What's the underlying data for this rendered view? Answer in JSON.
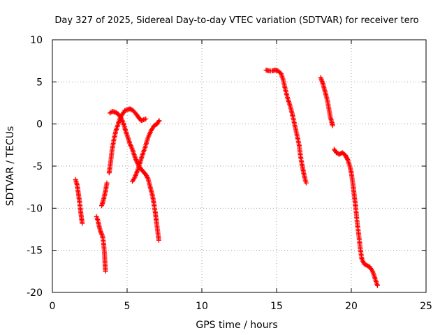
{
  "chart_data": {
    "type": "scatter",
    "title": "Day 327 of 2025, Sidereal Day-to-day VTEC variation (SDTVAR) for receiver tero",
    "xlabel": "GPS time / hours",
    "ylabel": "SDTVAR / TECUs",
    "xlim": [
      0,
      25
    ],
    "ylim": [
      -20,
      10
    ],
    "xticks": [
      0,
      5,
      10,
      15,
      20,
      25
    ],
    "yticks": [
      -20,
      -15,
      -10,
      -5,
      0,
      5,
      10
    ],
    "grid": true,
    "marker": "+",
    "color": "#ff0000",
    "series": [
      {
        "segments": [
          [
            [
              1.55,
              -6.6
            ],
            [
              1.65,
              -7.2
            ],
            [
              1.72,
              -8.0
            ],
            [
              1.8,
              -9.0
            ],
            [
              1.88,
              -10.2
            ],
            [
              1.95,
              -11.2
            ],
            [
              2.0,
              -11.8
            ]
          ],
          [
            [
              2.95,
              -11.0
            ],
            [
              3.05,
              -11.5
            ],
            [
              3.15,
              -12.3
            ],
            [
              3.25,
              -12.9
            ],
            [
              3.35,
              -13.3
            ],
            [
              3.42,
              -14.0
            ],
            [
              3.48,
              -15.2
            ],
            [
              3.52,
              -16.5
            ],
            [
              3.55,
              -17.5
            ]
          ],
          [
            [
              3.3,
              -9.7
            ],
            [
              3.42,
              -9.0
            ],
            [
              3.55,
              -8.0
            ],
            [
              3.65,
              -7.0
            ]
          ],
          [
            [
              3.8,
              -5.8
            ],
            [
              3.9,
              -4.5
            ],
            [
              4.0,
              -3.0
            ],
            [
              4.12,
              -1.8
            ],
            [
              4.25,
              -0.8
            ],
            [
              4.4,
              0.0
            ],
            [
              4.55,
              0.8
            ],
            [
              4.7,
              1.2
            ],
            [
              4.85,
              1.6
            ],
            [
              5.0,
              1.7
            ],
            [
              5.2,
              1.8
            ],
            [
              5.4,
              1.6
            ],
            [
              5.6,
              1.2
            ],
            [
              5.8,
              0.7
            ],
            [
              5.95,
              0.4
            ],
            [
              6.1,
              0.5
            ],
            [
              6.25,
              0.6
            ]
          ],
          [
            [
              3.85,
              1.3
            ],
            [
              4.0,
              1.5
            ],
            [
              4.2,
              1.4
            ],
            [
              4.4,
              1.2
            ],
            [
              4.6,
              0.7
            ],
            [
              4.75,
              0.1
            ],
            [
              4.9,
              -0.8
            ],
            [
              5.05,
              -1.6
            ],
            [
              5.2,
              -2.4
            ],
            [
              5.35,
              -3.0
            ],
            [
              5.5,
              -3.8
            ],
            [
              5.65,
              -4.5
            ],
            [
              5.8,
              -5.0
            ],
            [
              5.95,
              -5.4
            ],
            [
              6.1,
              -5.7
            ],
            [
              6.25,
              -6.0
            ],
            [
              6.4,
              -6.5
            ],
            [
              6.55,
              -7.5
            ],
            [
              6.7,
              -8.5
            ],
            [
              6.8,
              -9.5
            ],
            [
              6.9,
              -10.7
            ],
            [
              6.98,
              -11.8
            ],
            [
              7.05,
              -12.8
            ],
            [
              7.12,
              -13.8
            ]
          ],
          [
            [
              5.35,
              -6.8
            ],
            [
              5.5,
              -6.4
            ],
            [
              5.7,
              -5.5
            ],
            [
              5.85,
              -4.7
            ],
            [
              6.0,
              -3.8
            ],
            [
              6.2,
              -2.8
            ],
            [
              6.4,
              -1.6
            ],
            [
              6.6,
              -0.8
            ],
            [
              6.8,
              -0.2
            ],
            [
              7.0,
              0.0
            ],
            [
              7.15,
              0.4
            ]
          ],
          [
            [
              14.3,
              6.4
            ],
            [
              14.5,
              6.3
            ],
            [
              14.7,
              6.3
            ],
            [
              14.9,
              6.4
            ],
            [
              15.1,
              6.3
            ],
            [
              15.3,
              6.0
            ],
            [
              15.45,
              5.2
            ],
            [
              15.6,
              4.0
            ],
            [
              15.75,
              3.0
            ],
            [
              15.9,
              2.2
            ],
            [
              16.05,
              1.2
            ],
            [
              16.2,
              0.0
            ],
            [
              16.35,
              -1.2
            ],
            [
              16.5,
              -2.4
            ],
            [
              16.6,
              -3.8
            ],
            [
              16.7,
              -4.8
            ],
            [
              16.8,
              -5.7
            ],
            [
              16.9,
              -6.5
            ],
            [
              16.98,
              -7.0
            ]
          ],
          [
            [
              17.95,
              5.5
            ],
            [
              18.1,
              4.8
            ],
            [
              18.25,
              3.8
            ],
            [
              18.4,
              2.8
            ],
            [
              18.5,
              1.8
            ],
            [
              18.6,
              0.8
            ],
            [
              18.7,
              0.2
            ],
            [
              18.75,
              -0.2
            ]
          ],
          [
            [
              18.85,
              -3.0
            ],
            [
              19.0,
              -3.4
            ],
            [
              19.2,
              -3.6
            ],
            [
              19.4,
              -3.4
            ],
            [
              19.6,
              -3.7
            ],
            [
              19.75,
              -4.2
            ],
            [
              19.9,
              -5.0
            ],
            [
              20.0,
              -5.8
            ],
            [
              20.1,
              -7.0
            ],
            [
              20.2,
              -8.5
            ],
            [
              20.3,
              -10.0
            ],
            [
              20.4,
              -11.8
            ],
            [
              20.5,
              -13.2
            ],
            [
              20.6,
              -14.8
            ],
            [
              20.7,
              -16.0
            ],
            [
              20.85,
              -16.6
            ],
            [
              21.05,
              -16.8
            ],
            [
              21.25,
              -17.0
            ],
            [
              21.45,
              -17.6
            ],
            [
              21.6,
              -18.4
            ],
            [
              21.75,
              -19.2
            ]
          ]
        ]
      }
    ]
  }
}
